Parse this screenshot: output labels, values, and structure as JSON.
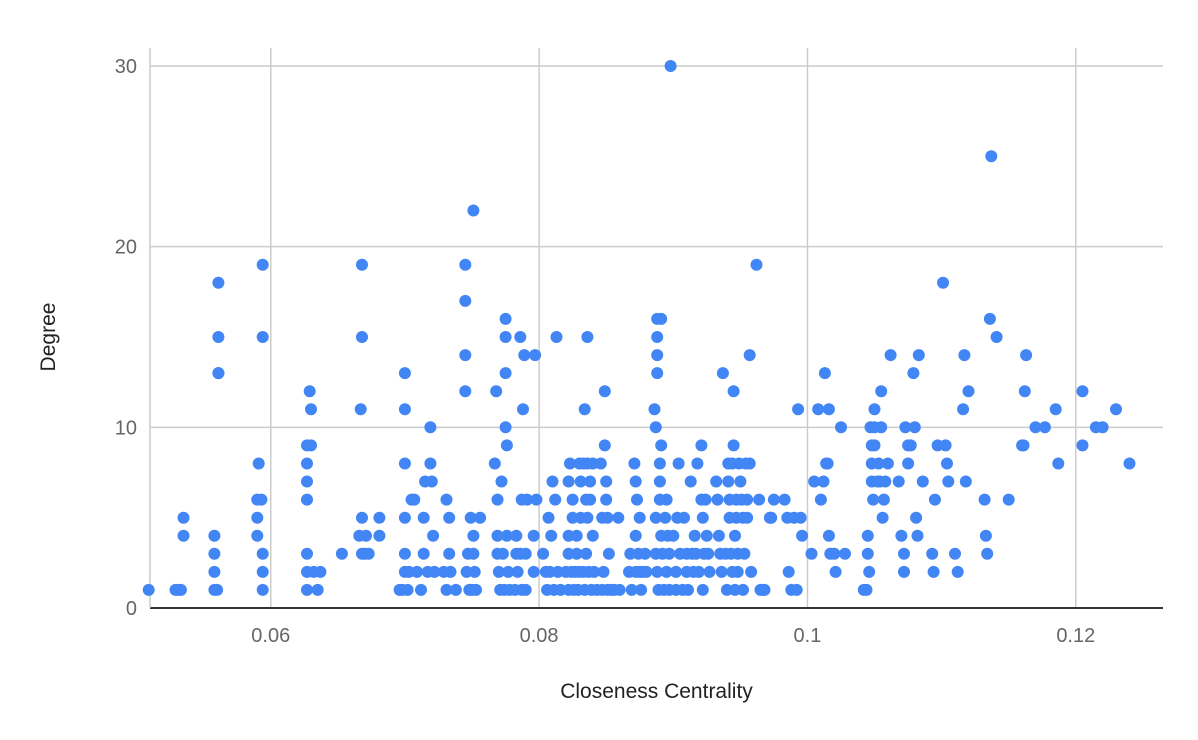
{
  "chart_data": {
    "type": "scatter",
    "title": "",
    "xlabel": "Closeness Centrality",
    "ylabel": "Degree",
    "xlim": [
      0.051,
      0.1265
    ],
    "ylim": [
      0,
      30
    ],
    "x_ticks": [
      "0.06",
      "0.08",
      "0.1",
      "0.12"
    ],
    "y_ticks": [
      "0",
      "10",
      "20",
      "30"
    ],
    "grid": true,
    "legend": "none",
    "point_color": "#4285F4",
    "points": [
      [
        0.0509,
        1
      ],
      [
        0.0529,
        1
      ],
      [
        0.0531,
        1
      ],
      [
        0.0533,
        1
      ],
      [
        0.0535,
        5
      ],
      [
        0.0535,
        4
      ],
      [
        0.0558,
        4
      ],
      [
        0.0558,
        3
      ],
      [
        0.0558,
        2
      ],
      [
        0.0558,
        1
      ],
      [
        0.056,
        1
      ],
      [
        0.0561,
        18
      ],
      [
        0.0561,
        15
      ],
      [
        0.0561,
        13
      ],
      [
        0.0561,
        13
      ],
      [
        0.059,
        6
      ],
      [
        0.059,
        5
      ],
      [
        0.059,
        4
      ],
      [
        0.0591,
        8
      ],
      [
        0.0593,
        6
      ],
      [
        0.0594,
        19
      ],
      [
        0.0594,
        15
      ],
      [
        0.0594,
        3
      ],
      [
        0.0594,
        2
      ],
      [
        0.0594,
        1
      ],
      [
        0.0627,
        3
      ],
      [
        0.0627,
        2
      ],
      [
        0.0627,
        1
      ],
      [
        0.0627,
        9
      ],
      [
        0.0627,
        8
      ],
      [
        0.0627,
        7
      ],
      [
        0.0627,
        6
      ],
      [
        0.0629,
        12
      ],
      [
        0.063,
        11
      ],
      [
        0.063,
        9
      ],
      [
        0.0632,
        2
      ],
      [
        0.0635,
        1
      ],
      [
        0.0637,
        2
      ],
      [
        0.0653,
        3
      ],
      [
        0.0666,
        4
      ],
      [
        0.0668,
        19
      ],
      [
        0.0668,
        15
      ],
      [
        0.0667,
        11
      ],
      [
        0.0668,
        5
      ],
      [
        0.0668,
        3
      ],
      [
        0.067,
        3
      ],
      [
        0.0671,
        4
      ],
      [
        0.0673,
        3
      ],
      [
        0.0681,
        5
      ],
      [
        0.0681,
        4
      ],
      [
        0.0696,
        1
      ],
      [
        0.0698,
        1
      ],
      [
        0.07,
        13
      ],
      [
        0.07,
        11
      ],
      [
        0.07,
        8
      ],
      [
        0.07,
        5
      ],
      [
        0.07,
        3
      ],
      [
        0.07,
        2
      ],
      [
        0.0702,
        1
      ],
      [
        0.0703,
        2
      ],
      [
        0.0705,
        6
      ],
      [
        0.0707,
        6
      ],
      [
        0.0709,
        2
      ],
      [
        0.0712,
        1
      ],
      [
        0.0714,
        5
      ],
      [
        0.0714,
        3
      ],
      [
        0.0715,
        7
      ],
      [
        0.0717,
        2
      ],
      [
        0.0719,
        10
      ],
      [
        0.0719,
        8
      ],
      [
        0.072,
        7
      ],
      [
        0.0721,
        4
      ],
      [
        0.0722,
        2
      ],
      [
        0.0729,
        2
      ],
      [
        0.0731,
        6
      ],
      [
        0.0731,
        1
      ],
      [
        0.0733,
        5
      ],
      [
        0.0733,
        3
      ],
      [
        0.0734,
        2
      ],
      [
        0.0738,
        1
      ],
      [
        0.0745,
        19
      ],
      [
        0.0745,
        17
      ],
      [
        0.0745,
        14
      ],
      [
        0.0745,
        12
      ],
      [
        0.0746,
        2
      ],
      [
        0.0747,
        3
      ],
      [
        0.0748,
        1
      ],
      [
        0.0749,
        5
      ],
      [
        0.075,
        1
      ],
      [
        0.0751,
        22
      ],
      [
        0.0751,
        4
      ],
      [
        0.0751,
        3
      ],
      [
        0.0752,
        2
      ],
      [
        0.0753,
        1
      ],
      [
        0.0756,
        5
      ],
      [
        0.0767,
        8
      ],
      [
        0.0768,
        12
      ],
      [
        0.0769,
        6
      ],
      [
        0.0769,
        4
      ],
      [
        0.0769,
        3
      ],
      [
        0.077,
        2
      ],
      [
        0.0771,
        1
      ],
      [
        0.0772,
        7
      ],
      [
        0.0773,
        3
      ],
      [
        0.0774,
        1
      ],
      [
        0.0775,
        16
      ],
      [
        0.0775,
        15
      ],
      [
        0.0775,
        13
      ],
      [
        0.0775,
        10
      ],
      [
        0.0776,
        9
      ],
      [
        0.0776,
        4
      ],
      [
        0.0777,
        2
      ],
      [
        0.0778,
        1
      ],
      [
        0.0782,
        1
      ],
      [
        0.0783,
        4
      ],
      [
        0.0783,
        3
      ],
      [
        0.0784,
        2
      ],
      [
        0.0786,
        15
      ],
      [
        0.0786,
        3
      ],
      [
        0.0787,
        6
      ],
      [
        0.0787,
        1
      ],
      [
        0.0788,
        11
      ],
      [
        0.0789,
        14
      ],
      [
        0.079,
        3
      ],
      [
        0.079,
        1
      ],
      [
        0.0791,
        6
      ],
      [
        0.0796,
        4
      ],
      [
        0.0796,
        2
      ],
      [
        0.0797,
        14
      ],
      [
        0.0798,
        6
      ],
      [
        0.0803,
        3
      ],
      [
        0.0805,
        2
      ],
      [
        0.0806,
        1
      ],
      [
        0.0807,
        5
      ],
      [
        0.0808,
        2
      ],
      [
        0.0809,
        4
      ],
      [
        0.081,
        7
      ],
      [
        0.0811,
        1
      ],
      [
        0.0812,
        6
      ],
      [
        0.0813,
        15
      ],
      [
        0.0814,
        2
      ],
      [
        0.0816,
        1
      ],
      [
        0.082,
        2
      ],
      [
        0.0822,
        7
      ],
      [
        0.0822,
        4
      ],
      [
        0.0822,
        3
      ],
      [
        0.0822,
        1
      ],
      [
        0.0823,
        8
      ],
      [
        0.0824,
        2
      ],
      [
        0.0825,
        6
      ],
      [
        0.0825,
        5
      ],
      [
        0.0826,
        1
      ],
      [
        0.0827,
        2
      ],
      [
        0.0828,
        4
      ],
      [
        0.0828,
        3
      ],
      [
        0.0829,
        1
      ],
      [
        0.083,
        8
      ],
      [
        0.083,
        2
      ],
      [
        0.0831,
        5
      ],
      [
        0.0831,
        7
      ],
      [
        0.0833,
        8
      ],
      [
        0.0833,
        2
      ],
      [
        0.0834,
        11
      ],
      [
        0.0834,
        1
      ],
      [
        0.0835,
        6
      ],
      [
        0.0835,
        3
      ],
      [
        0.0836,
        15
      ],
      [
        0.0836,
        8
      ],
      [
        0.0836,
        5
      ],
      [
        0.0837,
        2
      ],
      [
        0.0838,
        7
      ],
      [
        0.0838,
        6
      ],
      [
        0.0839,
        1
      ],
      [
        0.084,
        8
      ],
      [
        0.084,
        4
      ],
      [
        0.0841,
        2
      ],
      [
        0.0843,
        1
      ],
      [
        0.0846,
        8
      ],
      [
        0.0847,
        5
      ],
      [
        0.0847,
        1
      ],
      [
        0.0848,
        2
      ],
      [
        0.0849,
        12
      ],
      [
        0.0849,
        9
      ],
      [
        0.085,
        7
      ],
      [
        0.085,
        6
      ],
      [
        0.0851,
        5
      ],
      [
        0.0851,
        1
      ],
      [
        0.0852,
        3
      ],
      [
        0.0854,
        1
      ],
      [
        0.0856,
        1
      ],
      [
        0.0859,
        5
      ],
      [
        0.086,
        1
      ],
      [
        0.0867,
        2
      ],
      [
        0.0868,
        3
      ],
      [
        0.0869,
        1
      ],
      [
        0.0871,
        8
      ],
      [
        0.0872,
        7
      ],
      [
        0.0872,
        4
      ],
      [
        0.0872,
        2
      ],
      [
        0.0873,
        6
      ],
      [
        0.0874,
        3
      ],
      [
        0.0875,
        5
      ],
      [
        0.0875,
        2
      ],
      [
        0.0876,
        1
      ],
      [
        0.0877,
        2
      ],
      [
        0.0879,
        3
      ],
      [
        0.088,
        2
      ],
      [
        0.0886,
        11
      ],
      [
        0.0887,
        10
      ],
      [
        0.0887,
        5
      ],
      [
        0.0887,
        3
      ],
      [
        0.0888,
        16
      ],
      [
        0.0888,
        15
      ],
      [
        0.0888,
        14
      ],
      [
        0.0888,
        13
      ],
      [
        0.0888,
        2
      ],
      [
        0.0889,
        1
      ],
      [
        0.089,
        8
      ],
      [
        0.089,
        7
      ],
      [
        0.089,
        6
      ],
      [
        0.0891,
        16
      ],
      [
        0.0891,
        9
      ],
      [
        0.0891,
        4
      ],
      [
        0.0892,
        3
      ],
      [
        0.0893,
        1
      ],
      [
        0.0894,
        5
      ],
      [
        0.0895,
        6
      ],
      [
        0.0895,
        2
      ],
      [
        0.0896,
        4
      ],
      [
        0.0897,
        3
      ],
      [
        0.0897,
        1
      ],
      [
        0.0898,
        30
      ],
      [
        0.09,
        4
      ],
      [
        0.0902,
        2
      ],
      [
        0.0902,
        1
      ],
      [
        0.0903,
        5
      ],
      [
        0.0904,
        8
      ],
      [
        0.0905,
        3
      ],
      [
        0.0907,
        1
      ],
      [
        0.0908,
        5
      ],
      [
        0.091,
        3
      ],
      [
        0.091,
        2
      ],
      [
        0.0911,
        1
      ],
      [
        0.0913,
        7
      ],
      [
        0.0914,
        3
      ],
      [
        0.0915,
        2
      ],
      [
        0.0916,
        4
      ],
      [
        0.0917,
        3
      ],
      [
        0.0918,
        8
      ],
      [
        0.0919,
        2
      ],
      [
        0.0921,
        9
      ],
      [
        0.0921,
        6
      ],
      [
        0.0922,
        5
      ],
      [
        0.0922,
        1
      ],
      [
        0.0923,
        3
      ],
      [
        0.0924,
        6
      ],
      [
        0.0925,
        4
      ],
      [
        0.0926,
        3
      ],
      [
        0.0927,
        2
      ],
      [
        0.0932,
        7
      ],
      [
        0.0933,
        6
      ],
      [
        0.0934,
        4
      ],
      [
        0.0935,
        3
      ],
      [
        0.0936,
        2
      ],
      [
        0.0937,
        13
      ],
      [
        0.0939,
        3
      ],
      [
        0.094,
        1
      ],
      [
        0.0941,
        8
      ],
      [
        0.0941,
        7
      ],
      [
        0.0942,
        6
      ],
      [
        0.0942,
        5
      ],
      [
        0.0943,
        3
      ],
      [
        0.0944,
        2
      ],
      [
        0.0944,
        8
      ],
      [
        0.0945,
        12
      ],
      [
        0.0945,
        9
      ],
      [
        0.0946,
        1
      ],
      [
        0.0946,
        4
      ],
      [
        0.0947,
        6
      ],
      [
        0.0947,
        5
      ],
      [
        0.0948,
        3
      ],
      [
        0.0948,
        2
      ],
      [
        0.0949,
        8
      ],
      [
        0.095,
        7
      ],
      [
        0.0951,
        6
      ],
      [
        0.0952,
        5
      ],
      [
        0.0952,
        1
      ],
      [
        0.0953,
        3
      ],
      [
        0.0954,
        8
      ],
      [
        0.0955,
        6
      ],
      [
        0.0955,
        5
      ],
      [
        0.0957,
        14
      ],
      [
        0.0957,
        8
      ],
      [
        0.0958,
        2
      ],
      [
        0.0962,
        19
      ],
      [
        0.0964,
        6
      ],
      [
        0.0965,
        1
      ],
      [
        0.0967,
        1
      ],
      [
        0.0968,
        1
      ],
      [
        0.0972,
        5
      ],
      [
        0.0973,
        5
      ],
      [
        0.0975,
        6
      ],
      [
        0.0983,
        6
      ],
      [
        0.0985,
        5
      ],
      [
        0.0986,
        2
      ],
      [
        0.0988,
        1
      ],
      [
        0.099,
        5
      ],
      [
        0.0992,
        1
      ],
      [
        0.0993,
        11
      ],
      [
        0.0995,
        5
      ],
      [
        0.0996,
        4
      ],
      [
        0.1003,
        3
      ],
      [
        0.1005,
        7
      ],
      [
        0.1008,
        11
      ],
      [
        0.101,
        6
      ],
      [
        0.1012,
        7
      ],
      [
        0.1013,
        13
      ],
      [
        0.1014,
        8
      ],
      [
        0.1015,
        8
      ],
      [
        0.1016,
        11
      ],
      [
        0.1016,
        4
      ],
      [
        0.1017,
        3
      ],
      [
        0.102,
        3
      ],
      [
        0.1021,
        2
      ],
      [
        0.1025,
        10
      ],
      [
        0.1028,
        3
      ],
      [
        0.1042,
        1
      ],
      [
        0.1044,
        1
      ],
      [
        0.1045,
        4
      ],
      [
        0.1045,
        3
      ],
      [
        0.1046,
        2
      ],
      [
        0.1047,
        10
      ],
      [
        0.1048,
        9
      ],
      [
        0.1048,
        8
      ],
      [
        0.1048,
        7
      ],
      [
        0.1049,
        6
      ],
      [
        0.105,
        11
      ],
      [
        0.105,
        10
      ],
      [
        0.105,
        9
      ],
      [
        0.1052,
        7
      ],
      [
        0.1053,
        8
      ],
      [
        0.1054,
        7
      ],
      [
        0.1055,
        12
      ],
      [
        0.1055,
        10
      ],
      [
        0.1056,
        5
      ],
      [
        0.1057,
        6
      ],
      [
        0.1058,
        7
      ],
      [
        0.106,
        8
      ],
      [
        0.1062,
        14
      ],
      [
        0.1068,
        7
      ],
      [
        0.107,
        4
      ],
      [
        0.1072,
        3
      ],
      [
        0.1072,
        2
      ],
      [
        0.1073,
        10
      ],
      [
        0.1075,
        8
      ],
      [
        0.1075,
        9
      ],
      [
        0.1077,
        9
      ],
      [
        0.1079,
        13
      ],
      [
        0.108,
        10
      ],
      [
        0.1081,
        5
      ],
      [
        0.1082,
        4
      ],
      [
        0.1083,
        14
      ],
      [
        0.1086,
        7
      ],
      [
        0.1093,
        3
      ],
      [
        0.1094,
        2
      ],
      [
        0.1095,
        6
      ],
      [
        0.1097,
        9
      ],
      [
        0.1101,
        18
      ],
      [
        0.1103,
        9
      ],
      [
        0.1104,
        8
      ],
      [
        0.1105,
        7
      ],
      [
        0.111,
        3
      ],
      [
        0.1112,
        2
      ],
      [
        0.1116,
        11
      ],
      [
        0.1117,
        14
      ],
      [
        0.1118,
        7
      ],
      [
        0.112,
        12
      ],
      [
        0.1132,
        6
      ],
      [
        0.1133,
        4
      ],
      [
        0.1134,
        3
      ],
      [
        0.1136,
        16
      ],
      [
        0.1137,
        25
      ],
      [
        0.1141,
        15
      ],
      [
        0.115,
        6
      ],
      [
        0.116,
        9
      ],
      [
        0.1161,
        9
      ],
      [
        0.1162,
        12
      ],
      [
        0.1163,
        14
      ],
      [
        0.117,
        10
      ],
      [
        0.1177,
        10
      ],
      [
        0.1185,
        11
      ],
      [
        0.1187,
        8
      ],
      [
        0.1205,
        9
      ],
      [
        0.1205,
        12
      ],
      [
        0.1215,
        10
      ],
      [
        0.122,
        10
      ],
      [
        0.123,
        11
      ],
      [
        0.124,
        8
      ]
    ]
  }
}
